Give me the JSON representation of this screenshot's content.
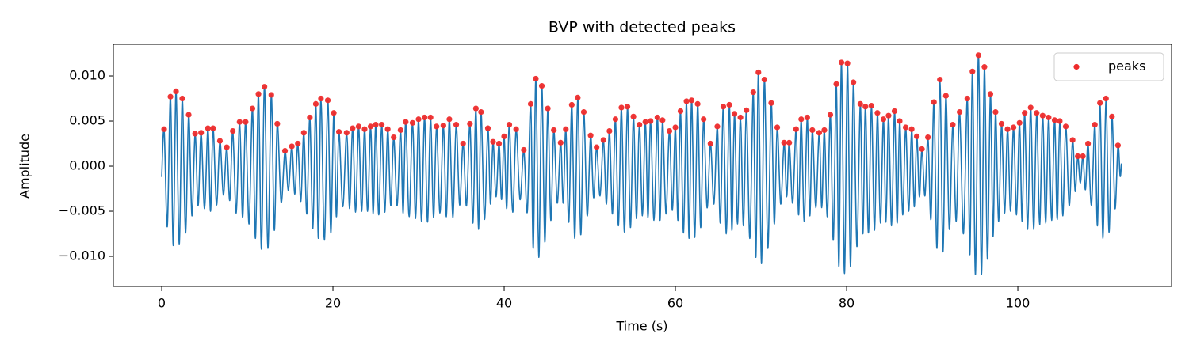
{
  "chart_data": {
    "type": "line",
    "title": "BVP with detected peaks",
    "xlabel": "Time (s)",
    "ylabel": "Amplitude",
    "xlim": [
      -5.65,
      117.96
    ],
    "ylim": [
      -0.01333,
      0.01351
    ],
    "xticks": [
      0,
      20,
      40,
      60,
      80,
      100
    ],
    "yticks": [
      {
        "value": -0.01,
        "label": "−0.010"
      },
      {
        "value": -0.005,
        "label": "−0.005"
      },
      {
        "value": 0,
        "label": "0.000"
      },
      {
        "value": 0.005,
        "label": "0.005"
      },
      {
        "value": 0.01,
        "label": "0.010"
      }
    ],
    "legend": "upper right",
    "series": [
      {
        "type": "line",
        "color": "#1f77b4",
        "x": [
          0,
          0.28,
          0.65,
          1.02,
          1.35,
          1.67,
          2.04,
          2.4,
          2.78,
          3.15,
          3.53,
          3.9,
          4.25,
          4.6,
          5.0,
          5.4,
          5.7,
          6.0,
          6.4,
          6.8,
          7.2,
          7.6,
          7.95,
          8.3,
          8.7,
          9.1,
          9.45,
          9.8,
          10.2,
          10.6,
          10.95,
          11.3,
          11.65,
          12.0,
          12.4,
          12.8,
          13.15,
          13.5,
          13.95,
          14.4,
          14.8,
          15.2,
          15.55,
          15.9,
          16.25,
          16.6,
          16.95,
          17.3,
          17.65,
          18.0,
          18.3,
          18.6,
          19.0,
          19.4,
          19.75,
          20.1,
          20.4,
          20.7,
          21.15,
          21.6,
          21.95,
          22.3,
          22.65,
          23.0,
          23.35,
          23.7,
          24.05,
          24.4,
          24.7,
          25.0,
          25.35,
          25.7,
          26.05,
          26.4,
          26.75,
          27.1,
          27.5,
          27.9,
          28.2,
          28.5,
          28.9,
          29.3,
          29.65,
          30.0,
          30.35,
          30.7,
          31.05,
          31.4,
          31.75,
          32.1,
          32.5,
          32.9,
          33.25,
          33.6,
          34.0,
          34.4,
          34.8,
          35.2,
          35.6,
          36.0,
          36.35,
          36.7,
          37.0,
          37.3,
          37.7,
          38.1,
          38.4,
          38.7,
          39.05,
          39.4,
          39.7,
          40.0,
          40.3,
          40.6,
          41.0,
          41.4,
          41.85,
          42.3,
          42.7,
          43.1,
          43.4,
          43.7,
          44.05,
          44.4,
          44.75,
          45.1,
          45.45,
          45.8,
          46.2,
          46.6,
          46.9,
          47.2,
          47.55,
          47.9,
          48.25,
          48.6,
          48.95,
          49.3,
          49.7,
          50.1,
          50.45,
          50.8,
          51.2,
          51.6,
          51.95,
          52.3,
          52.65,
          53.0,
          53.35,
          53.7,
          54.05,
          54.4,
          54.75,
          55.1,
          55.45,
          55.8,
          56.15,
          56.5,
          56.8,
          57.1,
          57.5,
          57.9,
          58.2,
          58.5,
          58.9,
          59.3,
          59.65,
          60.0,
          60.3,
          60.6,
          60.95,
          61.3,
          61.6,
          61.9,
          62.25,
          62.6,
          62.95,
          63.3,
          63.7,
          64.1,
          64.5,
          64.9,
          65.25,
          65.6,
          65.95,
          66.3,
          66.6,
          66.9,
          67.25,
          67.6,
          67.95,
          68.3,
          68.7,
          69.1,
          69.4,
          69.7,
          70.05,
          70.4,
          70.8,
          71.2,
          71.55,
          71.9,
          72.3,
          72.7,
          73.0,
          73.3,
          73.7,
          74.1,
          74.4,
          74.7,
          75.05,
          75.4,
          75.7,
          76.0,
          76.4,
          76.8,
          77.1,
          77.4,
          77.75,
          78.1,
          78.45,
          78.8,
          79.1,
          79.4,
          79.75,
          80.1,
          80.45,
          80.8,
          81.2,
          81.6,
          81.9,
          82.2,
          82.55,
          82.9,
          83.25,
          83.6,
          83.95,
          84.3,
          84.6,
          84.9,
          85.25,
          85.6,
          85.9,
          86.2,
          86.55,
          86.9,
          87.25,
          87.6,
          87.9,
          88.2,
          88.5,
          88.8,
          89.15,
          89.5,
          89.85,
          90.2,
          90.55,
          90.9,
          91.25,
          91.6,
          92.0,
          92.4,
          92.8,
          93.2,
          93.65,
          94.1,
          94.4,
          94.7,
          95.05,
          95.4,
          95.75,
          96.1,
          96.45,
          96.8,
          97.1,
          97.4,
          97.75,
          98.1,
          98.45,
          98.8,
          99.15,
          99.5,
          99.85,
          100.2,
          100.5,
          100.8,
          101.15,
          101.5,
          101.85,
          102.2,
          102.55,
          102.9,
          103.25,
          103.6,
          103.95,
          104.3,
          104.6,
          104.9,
          105.25,
          105.6,
          106.0,
          106.4,
          106.7,
          107.0,
          107.3,
          107.6,
          107.9,
          108.2,
          108.6,
          109.0,
          109.3,
          109.6,
          109.95,
          110.3,
          110.65,
          111.0,
          111.35,
          111.7,
          111.95,
          112.1
        ],
        "values": [
          -0.0012,
          0.0041,
          -0.0067,
          0.0077,
          -0.0088,
          0.0083,
          -0.0087,
          0.0075,
          -0.0074,
          0.0057,
          -0.0055,
          0.0036,
          -0.0044,
          0.0037,
          -0.0047,
          0.0042,
          -0.005,
          0.0042,
          -0.0043,
          0.0028,
          -0.0032,
          0.0021,
          -0.0038,
          0.0039,
          -0.0052,
          0.0049,
          -0.0057,
          0.0049,
          -0.0064,
          0.0064,
          -0.008,
          0.008,
          -0.0092,
          0.0088,
          -0.0091,
          0.0079,
          -0.0071,
          0.0047,
          -0.004,
          0.0017,
          -0.0027,
          0.0022,
          -0.0031,
          0.0025,
          -0.0039,
          0.0037,
          -0.0053,
          0.0054,
          -0.0069,
          0.0069,
          -0.008,
          0.0075,
          -0.0082,
          0.0073,
          -0.0074,
          0.0059,
          -0.0056,
          0.0038,
          -0.0045,
          0.0037,
          -0.0047,
          0.0042,
          -0.0051,
          0.0044,
          -0.005,
          0.0041,
          -0.005,
          0.0044,
          -0.0053,
          0.0046,
          -0.0054,
          0.0046,
          -0.0051,
          0.0041,
          -0.0044,
          0.0032,
          -0.0044,
          0.004,
          -0.0052,
          0.0049,
          -0.0056,
          0.0048,
          -0.0058,
          0.0052,
          -0.0061,
          0.0054,
          -0.0062,
          0.0054,
          -0.0057,
          0.0044,
          -0.0052,
          0.0045,
          -0.0056,
          0.0052,
          -0.0057,
          0.0046,
          -0.0043,
          0.0025,
          -0.0044,
          0.0047,
          -0.0063,
          0.0064,
          -0.007,
          0.006,
          -0.0059,
          0.0042,
          -0.0042,
          0.0027,
          -0.0034,
          0.0025,
          -0.0037,
          0.0033,
          -0.0047,
          0.0046,
          -0.0051,
          0.0041,
          -0.0037,
          0.0018,
          -0.0051,
          0.0069,
          -0.0091,
          0.0097,
          -0.0101,
          0.0089,
          -0.0084,
          0.0064,
          -0.006,
          0.004,
          -0.0041,
          0.0026,
          -0.0041,
          0.0041,
          -0.0062,
          0.0068,
          -0.008,
          0.0076,
          -0.0076,
          0.006,
          -0.0055,
          0.0034,
          -0.0035,
          0.0021,
          -0.0033,
          0.0029,
          -0.0042,
          0.0039,
          -0.0053,
          0.0052,
          -0.0066,
          0.0065,
          -0.0073,
          0.0066,
          -0.0068,
          0.0055,
          -0.0058,
          0.0046,
          -0.0055,
          0.0049,
          -0.0057,
          0.005,
          -0.006,
          0.0054,
          -0.006,
          0.0051,
          -0.0053,
          0.0039,
          -0.0049,
          0.0043,
          -0.006,
          0.0061,
          -0.0074,
          0.0072,
          -0.008,
          0.0073,
          -0.0079,
          0.0069,
          -0.0068,
          0.0052,
          -0.0046,
          0.0025,
          -0.0042,
          0.0044,
          -0.0063,
          0.0066,
          -0.0075,
          0.0068,
          -0.0071,
          0.0058,
          -0.0064,
          0.0054,
          -0.0066,
          0.0062,
          -0.008,
          0.0082,
          -0.0101,
          0.0104,
          -0.0108,
          0.0096,
          -0.0091,
          0.007,
          -0.0064,
          0.0043,
          -0.0042,
          0.0026,
          -0.0034,
          0.0026,
          -0.0041,
          0.0041,
          -0.0054,
          0.0052,
          -0.0061,
          0.0054,
          -0.0055,
          0.004,
          -0.0046,
          0.0037,
          -0.0046,
          0.004,
          -0.0056,
          0.0057,
          -0.0082,
          0.0091,
          -0.0111,
          0.0115,
          -0.0119,
          0.0114,
          -0.0111,
          0.0093,
          -0.0089,
          0.0069,
          -0.0075,
          0.0066,
          -0.0074,
          0.0067,
          -0.0071,
          0.0059,
          -0.0063,
          0.0052,
          -0.0062,
          0.0056,
          -0.0066,
          0.0061,
          -0.0063,
          0.005,
          -0.0054,
          0.0043,
          -0.005,
          0.0041,
          -0.0045,
          0.0033,
          -0.0034,
          0.0019,
          -0.0033,
          0.0032,
          -0.0059,
          0.0071,
          -0.0091,
          0.0096,
          -0.0095,
          0.0078,
          -0.007,
          0.0046,
          -0.0061,
          0.006,
          -0.0075,
          0.0075,
          -0.0098,
          0.0105,
          -0.012,
          0.0123,
          -0.012,
          0.011,
          -0.0103,
          0.008,
          -0.0078,
          0.006,
          -0.0061,
          0.0047,
          -0.0052,
          0.0041,
          -0.005,
          0.0043,
          -0.0054,
          0.0048,
          -0.0061,
          0.0059,
          -0.007,
          0.0065,
          -0.007,
          0.0059,
          -0.0065,
          0.0056,
          -0.0063,
          0.0054,
          -0.006,
          0.0051,
          -0.0059,
          0.005,
          -0.0055,
          0.0044,
          -0.0044,
          0.0029,
          -0.0028,
          0.0011,
          -0.0019,
          0.0011,
          -0.0026,
          0.0025,
          -0.0043,
          0.0046,
          -0.0066,
          0.007,
          -0.008,
          0.0075,
          -0.0073,
          0.0055,
          -0.0047,
          0.0023,
          -0.0011,
          0.0003
        ]
      },
      {
        "type": "scatter",
        "name": "peaks",
        "color": "#ee2b2b",
        "x": [
          0.28,
          1.02,
          1.67,
          2.4,
          3.15,
          3.9,
          4.6,
          5.4,
          6.0,
          6.8,
          7.6,
          8.3,
          9.1,
          9.8,
          10.6,
          11.3,
          12.0,
          12.8,
          13.5,
          14.4,
          15.2,
          15.9,
          16.6,
          17.3,
          18.0,
          18.6,
          19.4,
          20.1,
          20.7,
          21.6,
          22.3,
          23.0,
          23.7,
          24.4,
          25.0,
          25.7,
          26.4,
          27.1,
          27.9,
          28.5,
          29.3,
          30.0,
          30.7,
          31.4,
          32.1,
          32.9,
          33.6,
          34.4,
          35.2,
          36.0,
          36.7,
          37.3,
          38.1,
          38.7,
          39.4,
          40.0,
          40.6,
          41.4,
          42.3,
          43.1,
          43.7,
          44.4,
          45.1,
          45.8,
          46.6,
          47.2,
          47.9,
          48.6,
          49.3,
          50.1,
          50.8,
          51.6,
          52.3,
          53.0,
          53.7,
          54.4,
          55.1,
          55.8,
          56.5,
          57.1,
          57.9,
          58.5,
          59.3,
          60.0,
          60.6,
          61.3,
          61.9,
          62.6,
          63.3,
          64.1,
          64.9,
          65.6,
          66.3,
          66.9,
          67.6,
          68.3,
          69.1,
          69.7,
          70.4,
          71.2,
          71.9,
          72.7,
          73.3,
          74.1,
          74.7,
          75.4,
          76.0,
          76.8,
          77.4,
          78.1,
          78.8,
          79.4,
          80.1,
          80.8,
          81.6,
          82.2,
          82.9,
          83.6,
          84.3,
          84.9,
          85.6,
          86.2,
          86.9,
          87.6,
          88.2,
          88.8,
          89.5,
          90.2,
          90.9,
          91.6,
          92.4,
          93.2,
          94.1,
          94.7,
          95.4,
          96.1,
          96.8,
          97.4,
          98.1,
          98.8,
          99.5,
          100.2,
          100.8,
          101.5,
          102.2,
          102.9,
          103.6,
          104.3,
          104.9,
          105.6,
          106.4,
          107.0,
          107.6,
          108.2,
          109.0,
          109.6,
          110.3,
          111.0,
          111.7
        ],
        "values": [
          0.0041,
          0.0077,
          0.0083,
          0.0075,
          0.0057,
          0.0036,
          0.0037,
          0.0042,
          0.0042,
          0.0028,
          0.0021,
          0.0039,
          0.0049,
          0.0049,
          0.0064,
          0.008,
          0.0088,
          0.0079,
          0.0047,
          0.0017,
          0.0022,
          0.0025,
          0.0037,
          0.0054,
          0.0069,
          0.0075,
          0.0073,
          0.0059,
          0.0038,
          0.0037,
          0.0042,
          0.0044,
          0.0041,
          0.0044,
          0.0046,
          0.0046,
          0.0041,
          0.0032,
          0.004,
          0.0049,
          0.0048,
          0.0052,
          0.0054,
          0.0054,
          0.0044,
          0.0045,
          0.0052,
          0.0046,
          0.0025,
          0.0047,
          0.0064,
          0.006,
          0.0042,
          0.0027,
          0.0025,
          0.0033,
          0.0046,
          0.0041,
          0.0018,
          0.0069,
          0.0097,
          0.0089,
          0.0064,
          0.004,
          0.0026,
          0.0041,
          0.0068,
          0.0076,
          0.006,
          0.0034,
          0.0021,
          0.0029,
          0.0039,
          0.0052,
          0.0065,
          0.0066,
          0.0055,
          0.0046,
          0.0049,
          0.005,
          0.0054,
          0.0051,
          0.0039,
          0.0043,
          0.0061,
          0.0072,
          0.0073,
          0.0069,
          0.0052,
          0.0025,
          0.0044,
          0.0066,
          0.0068,
          0.0058,
          0.0054,
          0.0062,
          0.0082,
          0.0104,
          0.0096,
          0.007,
          0.0043,
          0.0026,
          0.0026,
          0.0041,
          0.0052,
          0.0054,
          0.004,
          0.0037,
          0.004,
          0.0057,
          0.0091,
          0.0115,
          0.0114,
          0.0093,
          0.0069,
          0.0066,
          0.0067,
          0.0059,
          0.0052,
          0.0056,
          0.0061,
          0.005,
          0.0043,
          0.0041,
          0.0033,
          0.0019,
          0.0032,
          0.0071,
          0.0096,
          0.0078,
          0.0046,
          0.006,
          0.0075,
          0.0105,
          0.0123,
          0.011,
          0.008,
          0.006,
          0.0047,
          0.0041,
          0.0043,
          0.0048,
          0.0059,
          0.0065,
          0.0059,
          0.0056,
          0.0054,
          0.0051,
          0.005,
          0.0044,
          0.0029,
          0.0011,
          0.0011,
          0.0025,
          0.0046,
          0.007,
          0.0075,
          0.0055,
          0.0023
        ]
      }
    ]
  }
}
